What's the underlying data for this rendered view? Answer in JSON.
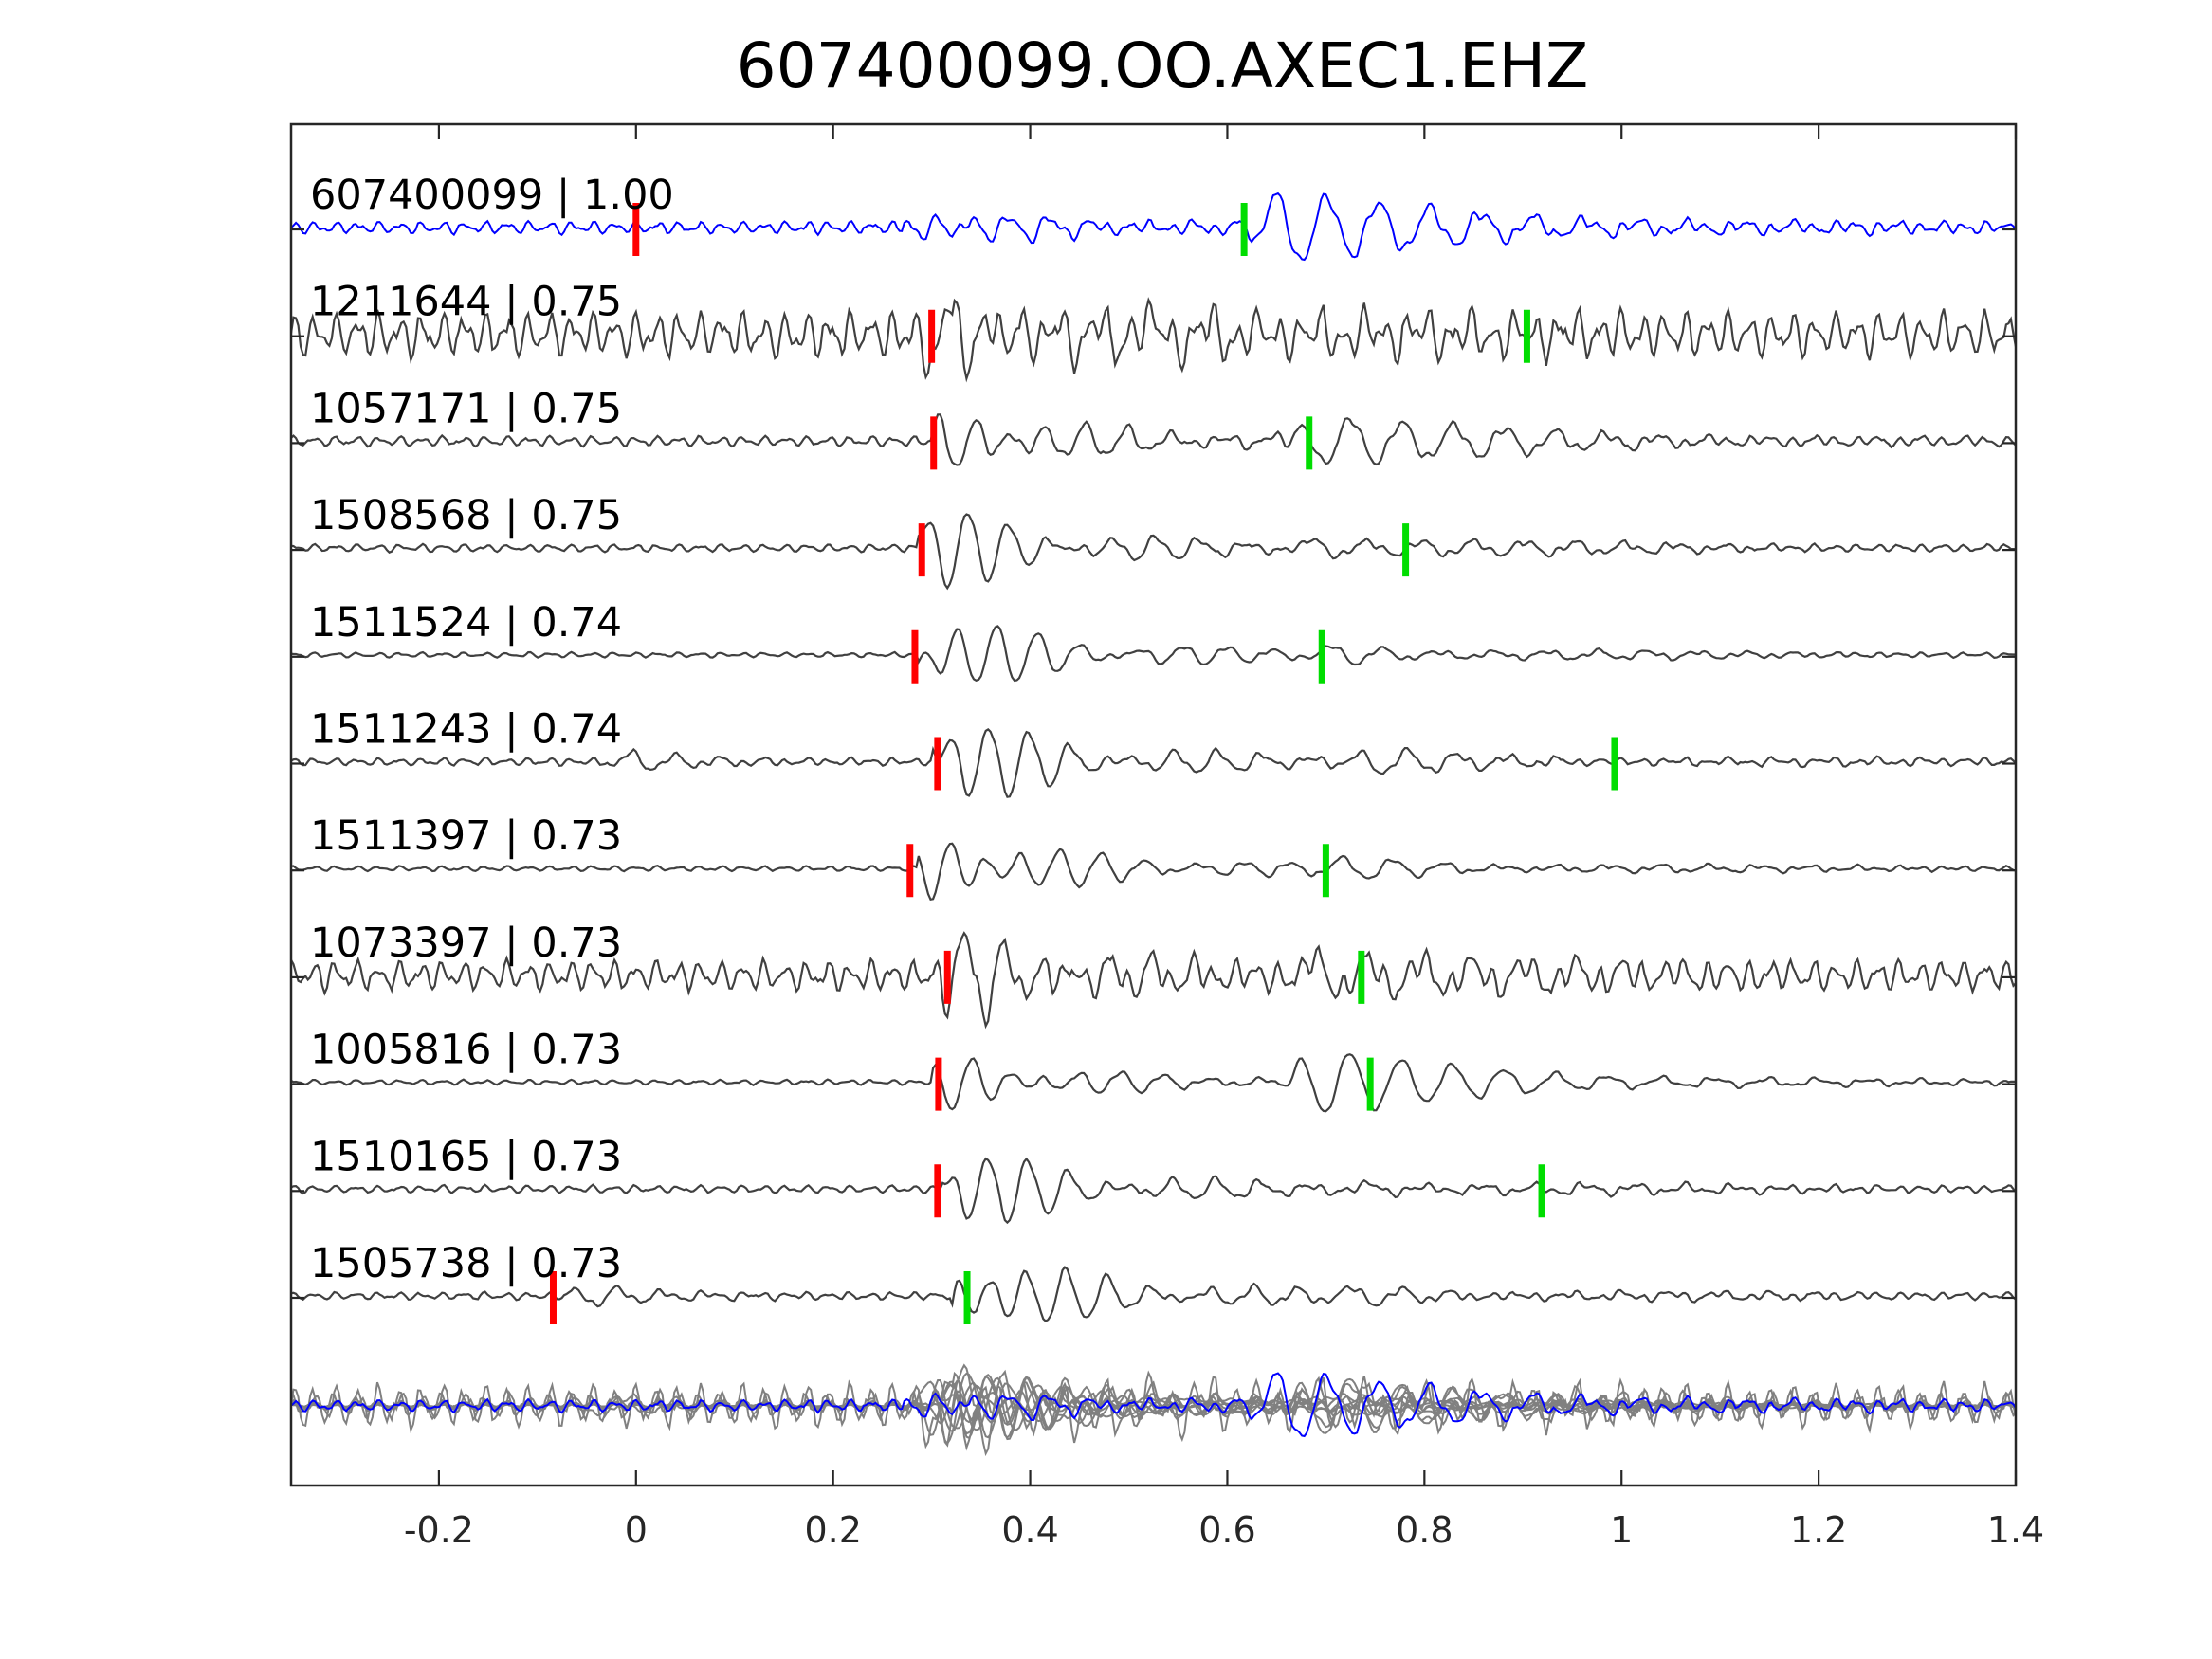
{
  "chart_data": {
    "type": "line",
    "title": "607400099.OO.AXEC1.EHZ",
    "xlabel": "",
    "ylabel": "",
    "xlim": [
      -0.35,
      1.4
    ],
    "xticks": [
      "-0.2",
      "0",
      "0.2",
      "0.4",
      "0.6",
      "0.8",
      "1",
      "1.2",
      "1.4"
    ],
    "xtick_values": [
      -0.2,
      0,
      0.2,
      0.4,
      0.6,
      0.8,
      1.0,
      1.2,
      1.4
    ],
    "grid": false,
    "colors": {
      "template": "#0000ff",
      "match": "#404040",
      "stack": "#808080",
      "p_pick": "#ff0000",
      "s_pick": "#00dd00",
      "axis": "#262626"
    },
    "traces": [
      {
        "label": "607400099 | 1.00",
        "id": "607400099",
        "cc": 1.0,
        "p_pick": 0.0,
        "s_pick": 0.617,
        "onset": 0.27,
        "s_arrival": 0.62,
        "p_amp": 0.25,
        "s_amp": 0.55,
        "noise": 0.05,
        "seed": 11,
        "template": true
      },
      {
        "label": "1211644 | 0.75",
        "id": "1211644",
        "cc": 0.75,
        "p_pick": 0.3,
        "s_pick": 0.904,
        "onset": 0.29,
        "s_arrival": 0.5,
        "p_amp": 0.5,
        "s_amp": 0.3,
        "noise": 0.18,
        "seed": 23
      },
      {
        "label": "1057171 | 0.75",
        "id": "1057171",
        "cc": 0.75,
        "p_pick": 0.302,
        "s_pick": 0.683,
        "onset": 0.3,
        "s_arrival": 0.66,
        "p_amp": 0.45,
        "s_amp": 0.4,
        "noise": 0.04,
        "seed": 37
      },
      {
        "label": "1508568 | 0.75",
        "id": "1508568",
        "cc": 0.75,
        "p_pick": 0.29,
        "s_pick": 0.781,
        "onset": 0.285,
        "s_arrival": 0.66,
        "p_amp": 0.5,
        "s_amp": 0.2,
        "noise": 0.03,
        "seed": 41
      },
      {
        "label": "1511524 | 0.74",
        "id": "1511524",
        "cc": 0.74,
        "p_pick": 0.283,
        "s_pick": 0.696,
        "onset": 0.285,
        "s_arrival": 0.68,
        "p_amp": 0.5,
        "s_amp": 0.15,
        "noise": 0.02,
        "seed": 53
      },
      {
        "label": "1511243 | 0.74",
        "id": "1511243",
        "cc": 0.74,
        "p_pick": 0.306,
        "s_pick": 0.993,
        "onset": 0.3,
        "s_arrival": 0.72,
        "p_amp": 0.55,
        "s_amp": 0.12,
        "noise": 0.03,
        "seed": 67,
        "pre_burst": -0.03
      },
      {
        "label": "1511397 | 0.73",
        "id": "1511397",
        "cc": 0.73,
        "p_pick": 0.278,
        "s_pick": 0.7,
        "onset": 0.285,
        "s_arrival": 0.69,
        "p_amp": 0.5,
        "s_amp": 0.15,
        "noise": 0.02,
        "seed": 71
      },
      {
        "label": "1073397 | 0.73",
        "id": "1073397",
        "cc": 0.73,
        "p_pick": 0.316,
        "s_pick": 0.736,
        "onset": 0.31,
        "s_arrival": 0.66,
        "p_amp": 0.55,
        "s_amp": 0.4,
        "noise": 0.12,
        "seed": 83
      },
      {
        "label": "1005816 | 0.73",
        "id": "1005816",
        "cc": 0.73,
        "p_pick": 0.307,
        "s_pick": 0.745,
        "onset": 0.3,
        "s_arrival": 0.66,
        "p_amp": 0.35,
        "s_amp": 0.45,
        "noise": 0.02,
        "seed": 97
      },
      {
        "label": "1510165 | 0.73",
        "id": "1510165",
        "cc": 0.73,
        "p_pick": 0.306,
        "s_pick": 0.919,
        "onset": 0.31,
        "s_arrival": 0.72,
        "p_amp": 0.5,
        "s_amp": 0.12,
        "noise": 0.03,
        "seed": 101
      },
      {
        "label": "1505738 | 0.73",
        "id": "1505738",
        "cc": 0.73,
        "p_pick": -0.084,
        "s_pick": 0.336,
        "onset": 0.32,
        "s_arrival": 0.7,
        "p_amp": 0.55,
        "s_amp": 0.12,
        "noise": 0.03,
        "seed": 113,
        "pre_burst": -0.07
      }
    ],
    "stack_row": {
      "template_overlay": true,
      "n_traces": 11
    }
  }
}
